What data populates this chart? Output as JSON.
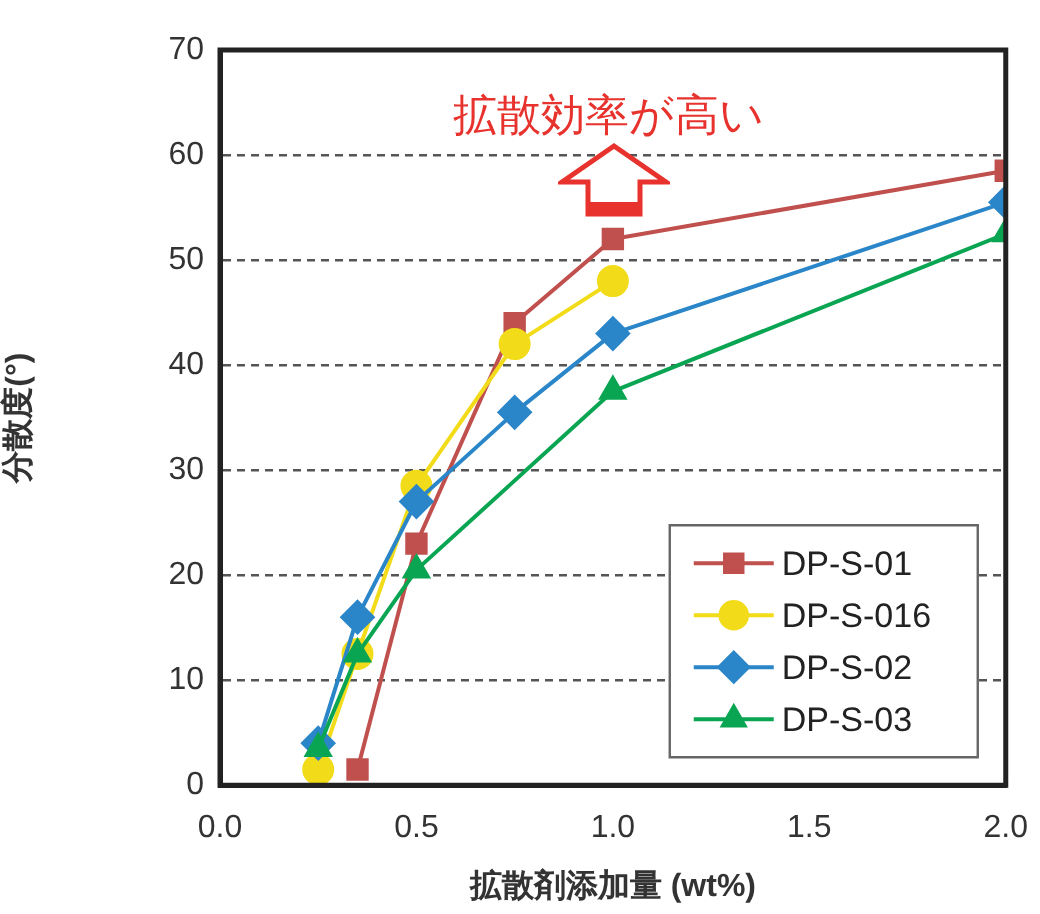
{
  "chart_data": {
    "type": "line",
    "xlabel": "拡散剤添加量 (wt%)",
    "ylabel": "分散度(°)",
    "annotations": [
      "拡散効率が高い"
    ],
    "xlim": [
      0,
      2
    ],
    "xticks": [
      {
        "value": 0,
        "label": "0.0"
      },
      {
        "value": 0.5,
        "label": "0.5"
      },
      {
        "value": 1,
        "label": "1.0"
      },
      {
        "value": 1.5,
        "label": "1.5"
      },
      {
        "value": 2,
        "label": "2.0"
      }
    ],
    "ylim": [
      0,
      70
    ],
    "yticks": [
      0,
      10,
      20,
      30,
      40,
      50,
      60,
      70
    ],
    "grid": "y",
    "legend": "bottom right",
    "line_style": "solid",
    "series": [
      {
        "name": "DP-S-01",
        "color": "#c0504d",
        "marker": "square",
        "x": [
          0.35,
          0.5,
          0.75,
          1.0,
          2.0
        ],
        "values": [
          1.5,
          23,
          44,
          52,
          58.5
        ]
      },
      {
        "name": "DP-S-016",
        "color": "#f2dc1a",
        "marker": "circle",
        "x": [
          0.25,
          0.35,
          0.5,
          0.75,
          1.0
        ],
        "values": [
          1.5,
          12.5,
          28.5,
          42,
          48
        ]
      },
      {
        "name": "DP-S-02",
        "color": "#2a86c8",
        "marker": "diamond",
        "x": [
          0.25,
          0.35,
          0.5,
          0.75,
          1.0,
          2.0
        ],
        "values": [
          4,
          16,
          27,
          35.5,
          43,
          55.5
        ]
      },
      {
        "name": "DP-S-03",
        "color": "#0aa552",
        "marker": "triangle",
        "x": [
          0.25,
          0.35,
          0.5,
          1.0,
          2.0
        ],
        "values": [
          3.5,
          12.5,
          20.5,
          37.5,
          52.5
        ]
      }
    ]
  }
}
